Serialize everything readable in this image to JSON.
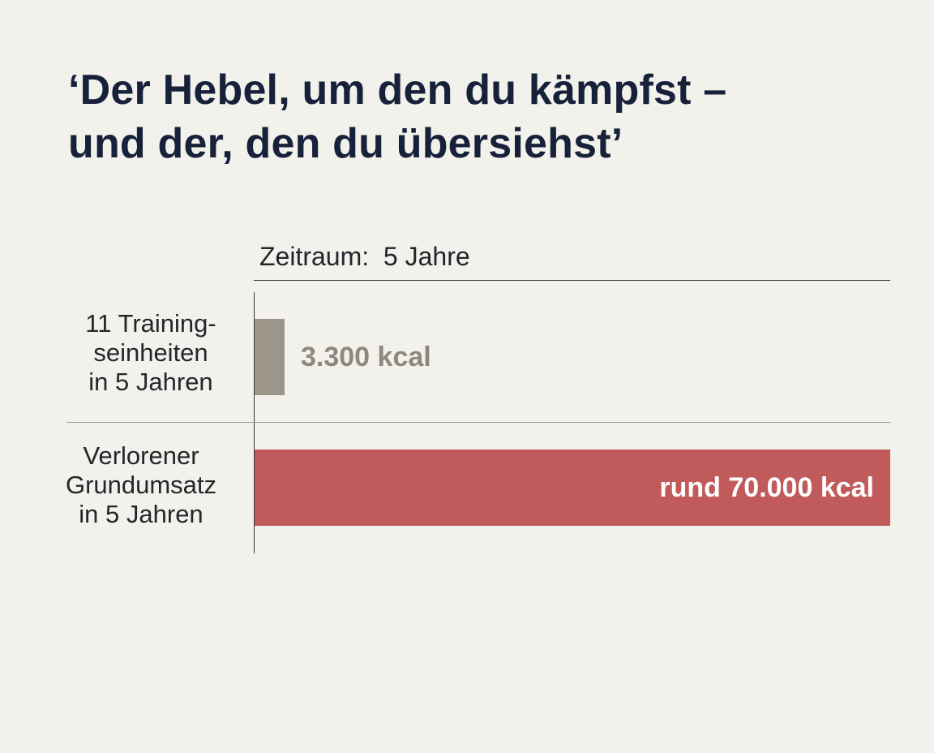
{
  "header": {
    "title_line1": "‘Der Hebel, um den du kämpfst –",
    "title_line2": "und der, den du übersiehst’"
  },
  "period": {
    "label": "Zeitraum:  5 Jahre"
  },
  "chart_data": {
    "type": "bar",
    "orientation": "horizontal",
    "title": "‘Der Hebel, um den du kämpfst – und der, den du übersiehst’",
    "subtitle": "Zeitraum:  5 Jahre",
    "categories": [
      [
        "11 Training-",
        "seinheiten",
        "in 5 Jahren"
      ],
      [
        "Verlorener",
        "Grundumsatz",
        "in 5 Jahren"
      ]
    ],
    "values": [
      3300,
      70000
    ],
    "value_labels": [
      "3.300 kcal",
      "rund 70.000 kcal"
    ],
    "colors": [
      "#9c968a",
      "#c15a5a"
    ],
    "label_colors": [
      "#8e887c",
      "#ffffff"
    ],
    "xlim": [
      0,
      70000
    ],
    "grid": false,
    "legend": "none"
  }
}
